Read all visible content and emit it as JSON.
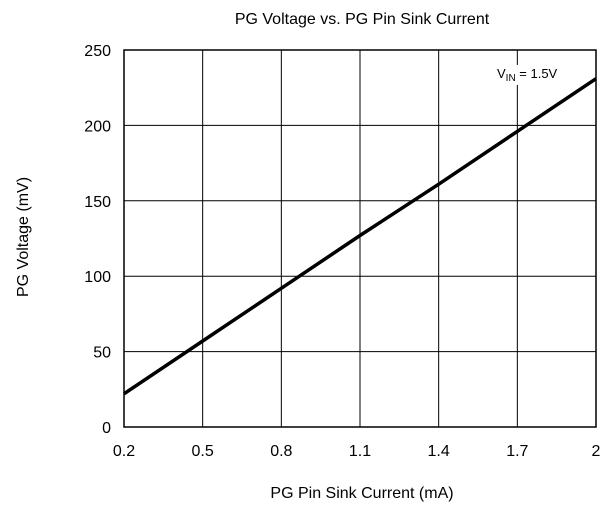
{
  "chart_data": {
    "type": "line",
    "title": "PG Voltage vs. PG Pin Sink Current",
    "xlabel": "PG Pin Sink Current (mA)",
    "ylabel": "PG Voltage (mV)",
    "xlim": [
      0.2,
      2.0
    ],
    "ylim": [
      0,
      250
    ],
    "x_ticks": [
      0.2,
      0.5,
      0.8,
      1.1,
      1.4,
      1.7,
      2.0
    ],
    "x_tick_labels": [
      "0.2",
      "0.5",
      "0.8",
      "1.1",
      "1.4",
      "1.7",
      "2"
    ],
    "y_ticks": [
      0,
      50,
      100,
      150,
      200,
      250
    ],
    "y_tick_labels": [
      "0",
      "50",
      "100",
      "150",
      "200",
      "250"
    ],
    "grid": true,
    "line_color": "#000000",
    "annotation": {
      "main": "V",
      "subscript": "IN",
      "suffix": " = 1.5V"
    },
    "series": [
      {
        "x": [
          0.2,
          0.5,
          0.8,
          1.1,
          1.4,
          1.7,
          2.0
        ],
        "values": [
          22,
          57,
          92,
          127,
          161,
          196,
          231
        ]
      }
    ]
  }
}
